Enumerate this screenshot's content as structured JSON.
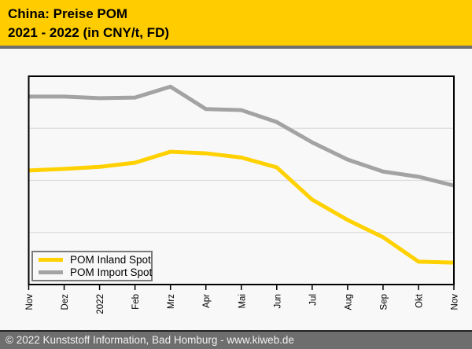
{
  "header": {
    "title_line1": "China: Preise POM",
    "title_line2": "2021 - 2022 (in CNY/t, FD)",
    "background_color": "#FFCC00"
  },
  "chart_data": {
    "type": "line",
    "title": "China: Preise POM 2021 - 2022 (in CNY/t, FD)",
    "categories": [
      "Nov",
      "Dez",
      "2022",
      "Feb",
      "Mrz",
      "Apr",
      "Mai",
      "Jun",
      "Jul",
      "Aug",
      "Sep",
      "Okt",
      "Nov"
    ],
    "series": [
      {
        "name": "POM Inland Spot",
        "color": "#FFD100",
        "values": [
          2.19,
          2.22,
          2.26,
          2.34,
          2.55,
          2.52,
          2.44,
          2.25,
          1.63,
          1.24,
          0.91,
          0.44,
          0.42
        ]
      },
      {
        "name": "POM Import Spot",
        "color": "#A3A3A3",
        "values": [
          3.61,
          3.61,
          3.58,
          3.59,
          3.8,
          3.37,
          3.35,
          3.12,
          2.73,
          2.4,
          2.17,
          2.07,
          1.9
        ]
      }
    ],
    "xlabel": "",
    "ylabel": "",
    "ylim": [
      0,
      4
    ],
    "y_axis_note": "no y-axis tick labels shown; values estimated in gridline units (1 unit = spacing between horizontal gridlines)",
    "grid": "horizontal",
    "legend_position": "bottom-left"
  },
  "footer": {
    "text": "© 2022 Kunststoff Information, Bad Homburg - www.kiweb.de",
    "background_color": "#6E6E6E"
  },
  "colors": {
    "page_background": "#F8F8F8",
    "gridline": "#DCDCDC",
    "frame": "#000000",
    "tick_label": "#000000"
  }
}
